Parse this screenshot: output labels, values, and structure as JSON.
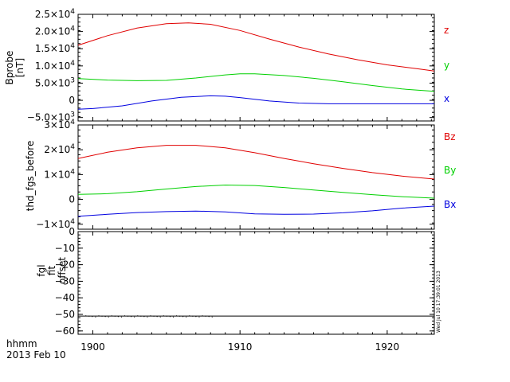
{
  "footer": {
    "line1": "hhmm",
    "line2": "2013 Feb 10"
  },
  "timestamp": "Wed Jul 10 17:39:01 2013",
  "chart_data": {
    "type": "line",
    "x_tick_labels": [
      "1900",
      "1910",
      "1920"
    ],
    "xlim": [
      1899,
      1923.2
    ],
    "panels": [
      {
        "ylabel": [
          "Bprobe",
          "[nT]"
        ],
        "ylim": [
          -6000,
          25000
        ],
        "ytick_values": [
          -5000,
          0,
          5000,
          10000,
          15000,
          20000,
          25000
        ],
        "ytick_labels": [
          {
            "mant": "−5.0×10",
            "exp": "3"
          },
          {
            "mant": "0",
            "exp": ""
          },
          {
            "mant": "5.0×10",
            "exp": "3"
          },
          {
            "mant": "1.0×10",
            "exp": "4"
          },
          {
            "mant": "1.5×10",
            "exp": "4"
          },
          {
            "mant": "2.0×10",
            "exp": "4"
          },
          {
            "mant": "2.5×10",
            "exp": "4"
          }
        ],
        "series": [
          {
            "name": "z",
            "color": "#e00000",
            "x": [
              1899,
              1901,
              1903,
              1905,
              1906.5,
              1908,
              1910,
              1912,
              1914,
              1916,
              1918,
              1920,
              1922,
              1923.2
            ],
            "y": [
              16000,
              18800,
              21000,
              22300,
              22500,
              22100,
              20300,
              17800,
              15500,
              13500,
              11800,
              10300,
              9200,
              8500
            ]
          },
          {
            "name": "y",
            "color": "#00d000",
            "x": [
              1899,
              1901,
              1903,
              1905,
              1907,
              1909,
              1910,
              1911,
              1913,
              1915,
              1917,
              1919,
              1921,
              1923.2
            ],
            "y": [
              6300,
              5900,
              5700,
              5800,
              6500,
              7400,
              7700,
              7700,
              7200,
              6400,
              5400,
              4300,
              3300,
              2600
            ]
          },
          {
            "name": "x",
            "color": "#0000e0",
            "x": [
              1899,
              1900,
              1902,
              1904,
              1906,
              1908,
              1909,
              1910,
              1912,
              1914,
              1916,
              1918,
              1923.2
            ],
            "y": [
              -2600,
              -2400,
              -1600,
              -200,
              900,
              1300,
              1200,
              800,
              -200,
              -800,
              -1000,
              -1000,
              -1000
            ]
          }
        ]
      },
      {
        "ylabel": [
          "thd_fgs_before"
        ],
        "ylim": [
          -12000,
          30000
        ],
        "ytick_values": [
          -10000,
          0,
          10000,
          20000,
          30000
        ],
        "ytick_labels": [
          {
            "mant": "−1×10",
            "exp": "4"
          },
          {
            "mant": "0",
            "exp": ""
          },
          {
            "mant": "1×10",
            "exp": "4"
          },
          {
            "mant": "2×10",
            "exp": "4"
          },
          {
            "mant": "3×10",
            "exp": "4"
          }
        ],
        "series": [
          {
            "name": "Bz",
            "color": "#e00000",
            "x": [
              1899,
              1901,
              1903,
              1905,
              1907,
              1909,
              1911,
              1913,
              1915,
              1917,
              1919,
              1921,
              1923.2
            ],
            "y": [
              16500,
              19000,
              20800,
              21800,
              21800,
              20800,
              18800,
              16500,
              14400,
              12500,
              10800,
              9400,
              8200
            ]
          },
          {
            "name": "By",
            "color": "#00d000",
            "x": [
              1899,
              1901,
              1903,
              1905,
              1907,
              1909,
              1911,
              1913,
              1915,
              1917,
              1919,
              1921,
              1923.2
            ],
            "y": [
              2000,
              2300,
              3100,
              4200,
              5200,
              5800,
              5600,
              4800,
              3800,
              2800,
              1900,
              1100,
              500
            ]
          },
          {
            "name": "Bx",
            "color": "#0000e0",
            "x": [
              1899,
              1901,
              1903,
              1905,
              1907,
              1909,
              1911,
              1913,
              1915,
              1917,
              1919,
              1921,
              1923.2
            ],
            "y": [
              -6800,
              -6000,
              -5300,
              -4900,
              -4700,
              -5000,
              -5800,
              -6000,
              -5900,
              -5400,
              -4600,
              -3500,
              -2700
            ]
          }
        ]
      },
      {
        "ylabel": [
          "fgl",
          "fit",
          "offset"
        ],
        "ylim": [
          -62,
          0
        ],
        "ytick_values": [
          0,
          -10,
          -20,
          -30,
          -40,
          -50,
          -60
        ],
        "ytick_labels": [
          {
            "mant": "0",
            "exp": ""
          },
          {
            "mant": "−10",
            "exp": ""
          },
          {
            "mant": "−20",
            "exp": ""
          },
          {
            "mant": "−30",
            "exp": ""
          },
          {
            "mant": "−40",
            "exp": ""
          },
          {
            "mant": "−50",
            "exp": ""
          },
          {
            "mant": "−60",
            "exp": ""
          }
        ],
        "series": [
          {
            "color": "#000000",
            "x": [
              1899,
              1923.2
            ],
            "y": [
              -51,
              -51
            ]
          }
        ]
      }
    ]
  }
}
